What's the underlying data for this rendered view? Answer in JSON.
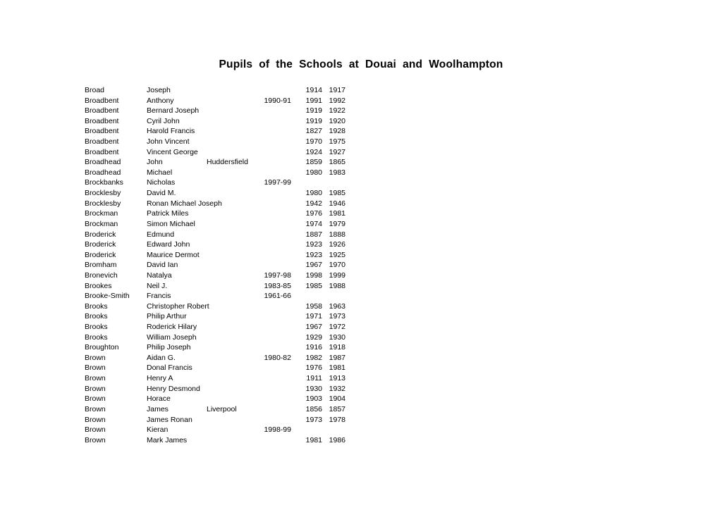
{
  "document": {
    "title": "Pupils of the Schools at Douai and Woolhampton"
  },
  "colors": {
    "text": "#000000",
    "background": "#ffffff"
  },
  "table": {
    "columns": [
      "surname",
      "forename",
      "place",
      "years_attended",
      "start_year",
      "end_year"
    ],
    "rows": [
      {
        "surname": "Broad",
        "forename": "Joseph",
        "place": "",
        "years": "",
        "from": "1914",
        "to": "1917"
      },
      {
        "surname": "Broadbent",
        "forename": "Anthony",
        "place": "",
        "years": "1990-91",
        "from": "1991",
        "to": "1992"
      },
      {
        "surname": "Broadbent",
        "forename": "Bernard Joseph",
        "place": "",
        "years": "",
        "from": "1919",
        "to": "1922"
      },
      {
        "surname": "Broadbent",
        "forename": "Cyril John",
        "place": "",
        "years": "",
        "from": "1919",
        "to": "1920"
      },
      {
        "surname": "Broadbent",
        "forename": "Harold Francis",
        "place": "",
        "years": "",
        "from": "1827",
        "to": "1928"
      },
      {
        "surname": "Broadbent",
        "forename": "John Vincent",
        "place": "",
        "years": "",
        "from": "1970",
        "to": "1975"
      },
      {
        "surname": "Broadbent",
        "forename": "Vincent George",
        "place": "",
        "years": "",
        "from": "1924",
        "to": "1927"
      },
      {
        "surname": "Broadhead",
        "forename": "John",
        "place": "Huddersfield",
        "years": "",
        "from": "1859",
        "to": "1865"
      },
      {
        "surname": "Broadhead",
        "forename": "Michael",
        "place": "",
        "years": "",
        "from": "1980",
        "to": "1983"
      },
      {
        "surname": "Brockbanks",
        "forename": "Nicholas",
        "place": "",
        "years": "1997-99",
        "from": "",
        "to": ""
      },
      {
        "surname": "Brocklesby",
        "forename": "David M.",
        "place": "",
        "years": "",
        "from": "1980",
        "to": "1985"
      },
      {
        "surname": "Brocklesby",
        "forename": "Ronan Michael Joseph",
        "place": "",
        "years": "",
        "from": "1942",
        "to": "1946"
      },
      {
        "surname": "Brockman",
        "forename": "Patrick Miles",
        "place": "",
        "years": "",
        "from": "1976",
        "to": "1981"
      },
      {
        "surname": "Brockman",
        "forename": "Simon Michael",
        "place": "",
        "years": "",
        "from": "1974",
        "to": "1979"
      },
      {
        "surname": "Broderick",
        "forename": "Edmund",
        "place": "",
        "years": "",
        "from": "1887",
        "to": "1888"
      },
      {
        "surname": "Broderick",
        "forename": "Edward John",
        "place": "",
        "years": "",
        "from": "1923",
        "to": "1926"
      },
      {
        "surname": "Broderick",
        "forename": "Maurice Dermot",
        "place": "",
        "years": "",
        "from": "1923",
        "to": "1925"
      },
      {
        "surname": "Bromham",
        "forename": "David Ian",
        "place": "",
        "years": "",
        "from": "1967",
        "to": "1970"
      },
      {
        "surname": "Bronevich",
        "forename": "Natalya",
        "place": "",
        "years": "1997-98",
        "from": "1998",
        "to": "1999"
      },
      {
        "surname": "Brookes",
        "forename": "Neil J.",
        "place": "",
        "years": "1983-85",
        "from": "1985",
        "to": "1988"
      },
      {
        "surname": "Brooke-Smith",
        "forename": "Francis",
        "place": "",
        "years": "1961-66",
        "from": "",
        "to": ""
      },
      {
        "surname": "Brooks",
        "forename": "Christopher Robert",
        "place": "",
        "years": "",
        "from": "1958",
        "to": "1963"
      },
      {
        "surname": "Brooks",
        "forename": "Philip Arthur",
        "place": "",
        "years": "",
        "from": "1971",
        "to": "1973"
      },
      {
        "surname": "Brooks",
        "forename": "Roderick Hilary",
        "place": "",
        "years": "",
        "from": "1967",
        "to": "1972"
      },
      {
        "surname": "Brooks",
        "forename": "William Joseph",
        "place": "",
        "years": "",
        "from": "1929",
        "to": "1930"
      },
      {
        "surname": "Broughton",
        "forename": "Philip Joseph",
        "place": "",
        "years": "",
        "from": "1916",
        "to": "1918"
      },
      {
        "surname": "Brown",
        "forename": "Aidan G.",
        "place": "",
        "years": "1980-82",
        "from": "1982",
        "to": "1987"
      },
      {
        "surname": "Brown",
        "forename": "Donal Francis",
        "place": "",
        "years": "",
        "from": "1976",
        "to": "1981"
      },
      {
        "surname": "Brown",
        "forename": "Henry A",
        "place": "",
        "years": "",
        "from": "1911",
        "to": "1913"
      },
      {
        "surname": "Brown",
        "forename": "Henry Desmond",
        "place": "",
        "years": "",
        "from": "1930",
        "to": "1932"
      },
      {
        "surname": "Brown",
        "forename": "Horace",
        "place": "",
        "years": "",
        "from": "1903",
        "to": "1904"
      },
      {
        "surname": "Brown",
        "forename": "James",
        "place": "Liverpool",
        "years": "",
        "from": "1856",
        "to": "1857"
      },
      {
        "surname": "Brown",
        "forename": "James Ronan",
        "place": "",
        "years": "",
        "from": "1973",
        "to": "1978"
      },
      {
        "surname": "Brown",
        "forename": "Kieran",
        "place": "",
        "years": "1998-99",
        "from": "",
        "to": ""
      },
      {
        "surname": "Brown",
        "forename": "Mark James",
        "place": "",
        "years": "",
        "from": "1981",
        "to": "1986"
      }
    ]
  }
}
